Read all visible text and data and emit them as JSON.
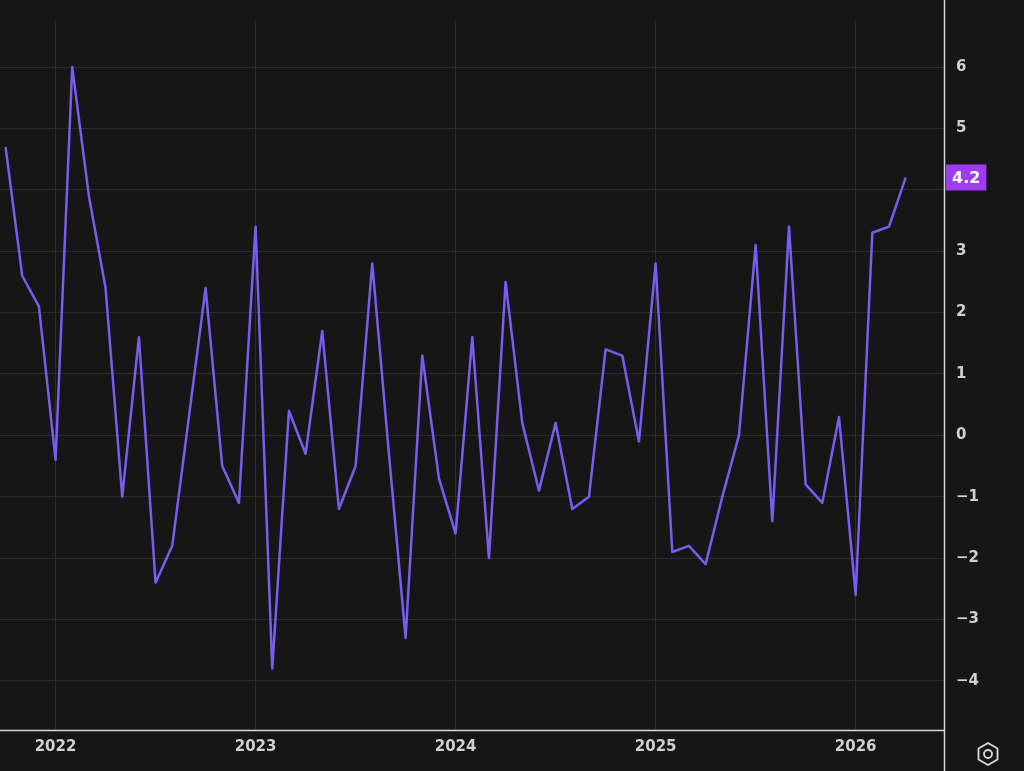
{
  "chart_data": {
    "type": "line",
    "x": [
      "2021-10",
      "2021-11",
      "2021-12",
      "2022-01",
      "2022-02",
      "2022-03",
      "2022-04",
      "2022-05",
      "2022-06",
      "2022-07",
      "2022-08",
      "2022-09",
      "2022-10",
      "2022-11",
      "2022-12",
      "2023-01",
      "2023-02",
      "2023-03",
      "2023-04",
      "2023-05",
      "2023-06",
      "2023-07",
      "2023-08",
      "2023-09",
      "2023-10",
      "2023-11",
      "2023-12",
      "2024-01",
      "2024-02",
      "2024-03",
      "2024-04",
      "2024-05",
      "2024-06",
      "2024-07",
      "2024-08",
      "2024-09",
      "2024-10",
      "2024-11",
      "2024-12",
      "2025-01",
      "2025-02",
      "2025-03",
      "2025-04",
      "2025-05",
      "2025-06",
      "2025-07",
      "2025-08",
      "2025-09",
      "2025-10",
      "2025-11",
      "2025-12",
      "2026-01",
      "2026-02",
      "2026-03",
      "2026-04"
    ],
    "series": [
      {
        "color": "#7a5cf0",
        "values": [
          4.7,
          2.6,
          2.1,
          -0.4,
          6.0,
          3.9,
          2.4,
          -1.0,
          1.6,
          -2.4,
          -1.8,
          0.3,
          2.4,
          -0.5,
          -1.1,
          3.4,
          -3.8,
          0.4,
          -0.3,
          1.7,
          -1.2,
          -0.5,
          2.8,
          -0.3,
          -3.3,
          1.3,
          -0.7,
          -1.6,
          1.6,
          -2.0,
          2.5,
          0.2,
          -0.9,
          0.2,
          -1.2,
          -1.0,
          1.4,
          1.3,
          -0.1,
          2.8,
          -1.9,
          -1.8,
          -2.1,
          -1.0,
          0.0,
          3.1,
          -1.4,
          3.4,
          -0.8,
          -1.1,
          0.3,
          -2.6,
          3.3,
          3.4,
          4.2
        ]
      }
    ],
    "xlim": [
      "2021-09-21",
      "2026-06-10"
    ],
    "xticks": [
      "2022",
      "2023",
      "2024",
      "2025",
      "2026"
    ],
    "ylim": [
      -4.8,
      6.75
    ],
    "yticks": [
      -4,
      -3,
      -2,
      -1,
      0,
      1,
      2,
      3,
      {
        "value": 4,
        "label": null
      },
      5,
      6
    ],
    "grid": true,
    "legend": false,
    "marker": "none",
    "line_style": "solid",
    "annotations": [
      {
        "text": "4.2",
        "x": "2026-04",
        "y": 4.2
      }
    ]
  }
}
